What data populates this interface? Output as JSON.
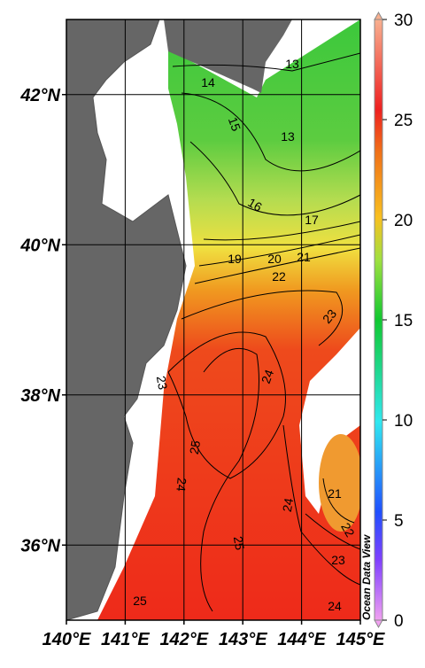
{
  "map": {
    "xlim": [
      140,
      145
    ],
    "ylim": [
      35,
      43
    ],
    "xticks": [
      {
        "value": 140,
        "label": "140°E"
      },
      {
        "value": 141,
        "label": "141°E"
      },
      {
        "value": 142,
        "label": "142°E"
      },
      {
        "value": 143,
        "label": "143°E"
      },
      {
        "value": 144,
        "label": "144°E"
      },
      {
        "value": 145,
        "label": "145°E"
      }
    ],
    "yticks": [
      {
        "value": 36,
        "label": "36°N"
      },
      {
        "value": 38,
        "label": "38°N"
      },
      {
        "value": 40,
        "label": "40°N"
      },
      {
        "value": 42,
        "label": "42°N"
      }
    ]
  },
  "colorbar": {
    "lim": [
      0,
      30
    ],
    "ticks": [
      0,
      5,
      10,
      15,
      20,
      25,
      30
    ]
  },
  "contour_labels": [
    "13",
    "14",
    "15",
    "13",
    "16",
    "17",
    "19",
    "20",
    "21",
    "22",
    "23",
    "23",
    "24",
    "25",
    "24",
    "25",
    "24",
    "21",
    "22",
    "23",
    "25",
    "24"
  ],
  "watermark": "Ocean Data View"
}
